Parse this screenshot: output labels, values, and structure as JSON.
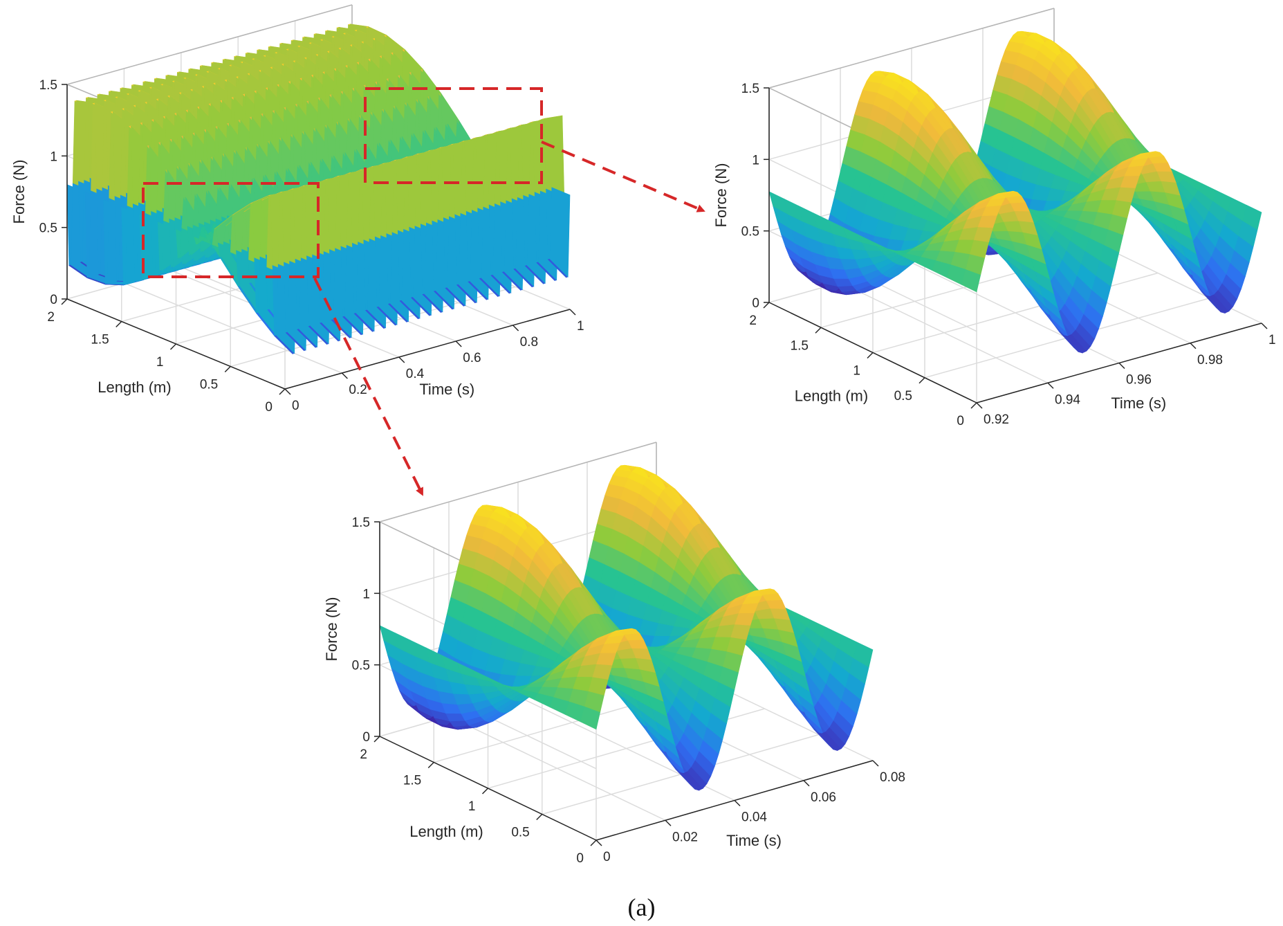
{
  "caption": "(a)",
  "colors": {
    "callout": "#d62728",
    "colormap": [
      "#3e26a8",
      "#2f6ef2",
      "#14a9cf",
      "#27c392",
      "#8fcb3c",
      "#f0b83c",
      "#f9e21e"
    ],
    "grid": "#dcdcdc",
    "axis": "#262626"
  },
  "chart_data": [
    {
      "id": "main",
      "type": "surface",
      "xlabel": "Time (s)",
      "ylabel": "Length (m)",
      "zlabel": "Force (N)",
      "xlim": [
        0,
        1
      ],
      "ylim": [
        0,
        2
      ],
      "zlim": [
        0,
        1.5
      ],
      "xticks": [
        "0",
        "0.2",
        "0.4",
        "0.6",
        "0.8",
        "1"
      ],
      "yticks": [
        "0",
        "0.5",
        "1",
        "1.5",
        "2"
      ],
      "zticks": [
        "0",
        "0.5",
        "1",
        "1.5"
      ],
      "surface": {
        "oscillation_period_s": 0.04,
        "force_min": 0.1,
        "force_max": 1.5,
        "profile_along_length": "standing wave, one full sine period over 2 m"
      }
    },
    {
      "id": "zoom-end",
      "type": "surface",
      "xlabel": "Time (s)",
      "ylabel": "Length (m)",
      "zlabel": "Force (N)",
      "xlim": [
        0.92,
        1
      ],
      "ylim": [
        0,
        2
      ],
      "zlim": [
        0,
        1.5
      ],
      "xticks": [
        "0.92",
        "0.94",
        "0.96",
        "0.98",
        "1"
      ],
      "yticks": [
        "0",
        "0.5",
        "1",
        "1.5",
        "2"
      ],
      "zticks": [
        "0",
        "0.5",
        "1",
        "1.5"
      ],
      "surface": {
        "oscillation_period_s": 0.04,
        "force_min": 0.1,
        "force_max": 1.45
      }
    },
    {
      "id": "zoom-start",
      "type": "surface",
      "xlabel": "Time (s)",
      "ylabel": "Length (m)",
      "zlabel": "Force (N)",
      "xlim": [
        0,
        0.08
      ],
      "ylim": [
        0,
        2
      ],
      "zlim": [
        0,
        1.5
      ],
      "xticks": [
        "0",
        "0.02",
        "0.04",
        "0.06",
        "0.08"
      ],
      "yticks": [
        "0",
        "0.5",
        "1",
        "1.5",
        "2"
      ],
      "zticks": [
        "0",
        "0.5",
        "1",
        "1.5"
      ],
      "surface": {
        "oscillation_period_s": 0.04,
        "force_min": 0.1,
        "force_max": 1.45
      }
    }
  ]
}
